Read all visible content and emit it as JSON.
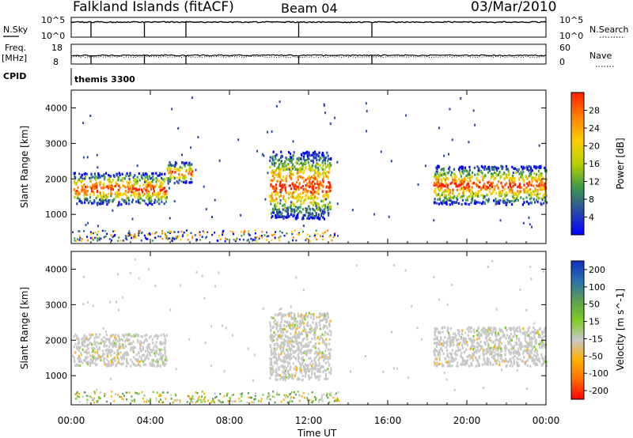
{
  "header": {
    "station": "Falkland Islands (fitACF)",
    "beam": "Beam 04",
    "date": "03/Mar/2010"
  },
  "top_panels": {
    "nsky_label": "N.Sky",
    "nsky_top": "10^5",
    "nsky_bottom": "10^0",
    "nsearch_label": "N.Search",
    "nsearch_top": "10^5",
    "nsearch_bottom": "10^0",
    "freq_label": "Freq.",
    "freq_unit": "[MHz]",
    "freq_top": "18",
    "freq_bottom": "8",
    "nave_label": "Nave",
    "nave_top": "60",
    "nave_bottom": "0",
    "cpid_label": "CPID",
    "cpid_value": "themis 3300"
  },
  "chart_data": [
    {
      "type": "heatmap",
      "panel": "power",
      "ylabel": "Slant Range [km]",
      "y_ticks": [
        "1000",
        "2000",
        "3000",
        "4000"
      ],
      "ylim": [
        180,
        4500
      ],
      "colorbar_label": "Power [dB]",
      "colorbar_ticks": [
        "4",
        "8",
        "12",
        "16",
        "20",
        "24",
        "28"
      ],
      "colorbar_colors": [
        "#0000ff",
        "#2a4aa8",
        "#3d9a4a",
        "#b8d000",
        "#ffcc00",
        "#ff7f00",
        "#ff2000"
      ],
      "echo_regions": [
        {
          "start_h": 0.1,
          "end_h": 4.8,
          "range_lo": 1300,
          "range_hi": 2200,
          "power_db": 28
        },
        {
          "start_h": 4.8,
          "end_h": 6.1,
          "range_lo": 1900,
          "range_hi": 2500,
          "power_db": 16
        },
        {
          "start_h": 10.0,
          "end_h": 13.1,
          "range_lo": 900,
          "range_hi": 2800,
          "power_db": 28
        },
        {
          "start_h": 18.3,
          "end_h": 24.0,
          "range_lo": 1300,
          "range_hi": 2400,
          "power_db": 28
        }
      ]
    },
    {
      "type": "heatmap",
      "panel": "velocity",
      "ylabel": "Slant Range [km]",
      "xlabel": "Time UT",
      "x_ticks": [
        "00:00",
        "04:00",
        "08:00",
        "12:00",
        "16:00",
        "20:00",
        "00:00"
      ],
      "y_ticks": [
        "1000",
        "2000",
        "3000",
        "4000"
      ],
      "ylim": [
        180,
        4500
      ],
      "colorbar_label": "Velocity [m s^-1]",
      "colorbar_ticks": [
        "200",
        "100",
        "50",
        "15",
        "-15",
        "-50",
        "-100",
        "-200"
      ],
      "colorbar_colors": [
        "#1030c0",
        "#2a6fb0",
        "#5aa050",
        "#7ccd20",
        "#c8c8c8",
        "#ffb000",
        "#ff7000",
        "#ff0000"
      ],
      "echo_regions": [
        {
          "start_h": 0.1,
          "end_h": 4.8,
          "range_lo": 1300,
          "range_hi": 2200,
          "velocity": 0
        },
        {
          "start_h": 10.0,
          "end_h": 13.1,
          "range_lo": 900,
          "range_hi": 2800,
          "velocity": 0
        },
        {
          "start_h": 18.3,
          "end_h": 24.0,
          "range_lo": 1300,
          "range_hi": 2400,
          "velocity": 0
        }
      ]
    }
  ]
}
